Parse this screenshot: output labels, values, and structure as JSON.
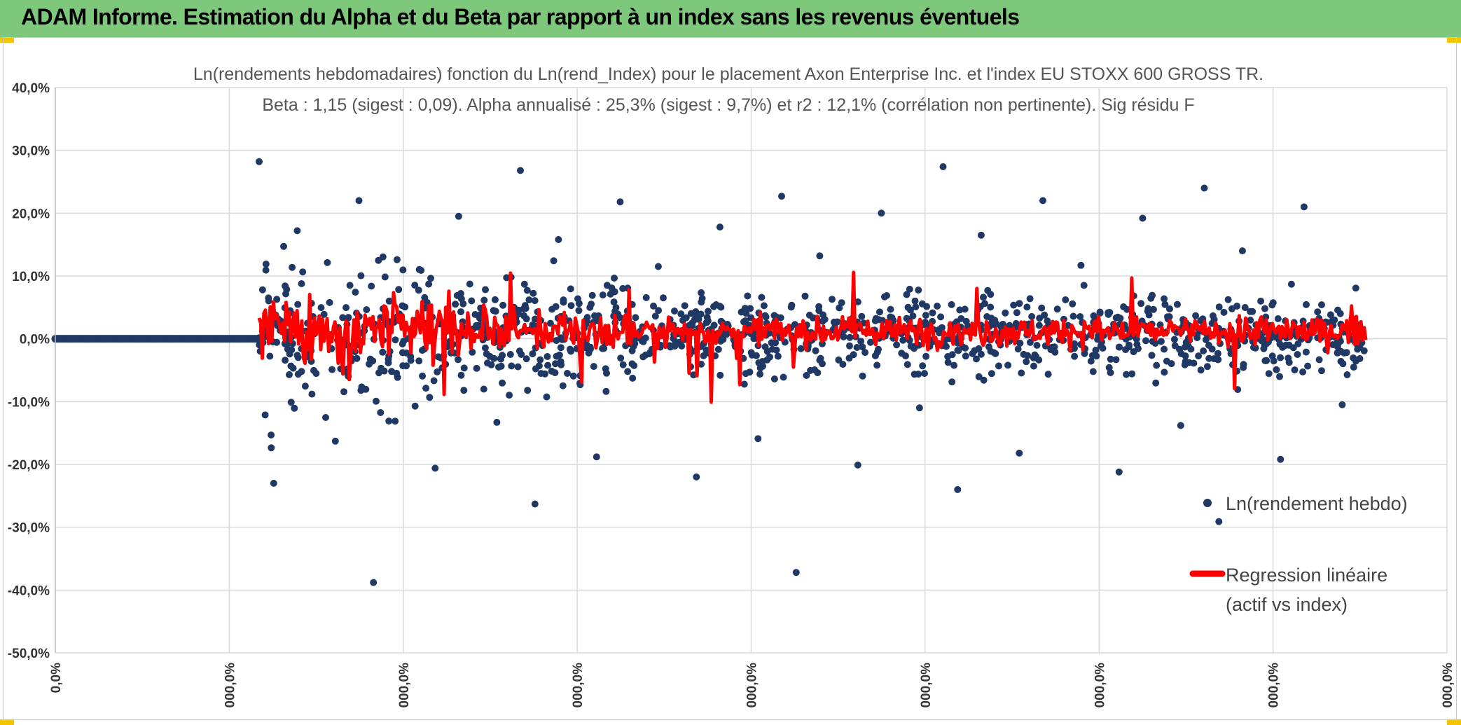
{
  "banner": {
    "title": "ADAM Informe. Estimation du Alpha et du Beta par rapport à un index sans les revenus éventuels"
  },
  "colors": {
    "banner": "#7dc87a",
    "points": "#1f3864",
    "regression": "#ff0000",
    "grid": "#d9d9d9",
    "corner": "#f3c400"
  },
  "chart_data": {
    "type": "scatter",
    "title": "Ln(rendements hebdomadaires) fonction du Ln(rend_Index) pour le placement Axon Enterprise Inc. et l'index EU STOXX 600 GROSS TR.",
    "subtitle": "Beta : 1,15 (sigest : 0,09). Alpha annualisé : 25,3% (sigest : 9,7%) et r2 : 12,1% (corrélation non pertinente). Sig résidu F",
    "ylim": [
      -50,
      40
    ],
    "y_ticks": [
      "40,0%",
      "30,0%",
      "20,0%",
      "10,0%",
      "0,0%",
      "-10,0%",
      "-20,0%",
      "-30,0%",
      "-40,0%",
      "-50,0%"
    ],
    "x_ticks": [
      "0,0%",
      "000,0%",
      "000,0%",
      "000,0%",
      "000,0%",
      "000,0%",
      "000,0%",
      "000,0%",
      "000,0%"
    ],
    "grid": true,
    "legend_position": "right",
    "series": [
      {
        "name": "Ln(rendement hebdo)",
        "marker": "dot",
        "zero_period_fraction": 0.295,
        "y_outliers": [
          28.2,
          27.4,
          26.8,
          24.0,
          22.7,
          22.0,
          22.0,
          21.8,
          21.0,
          20.0,
          19.5,
          19.2,
          17.8,
          17.2,
          16.5,
          15.8,
          14.0,
          13.2,
          12.6,
          11.7,
          11.5,
          -10.5,
          -11.0,
          -13.3,
          -13.8,
          -15.9,
          -16.3,
          -18.2,
          -18.8,
          -19.2,
          -20.1,
          -20.6,
          -21.2,
          -22.0,
          -23.0,
          -24.0,
          -26.3,
          -29.1,
          -37.2,
          -38.8
        ]
      },
      {
        "name": "Regression linéaire (actif vs index)",
        "marker": "line",
        "y_range": [
          -16.0,
          11.8
        ]
      }
    ],
    "legend_labels": [
      "Ln(rendement hebdo)",
      "Regression linéaire",
      "(actif vs index)"
    ]
  }
}
